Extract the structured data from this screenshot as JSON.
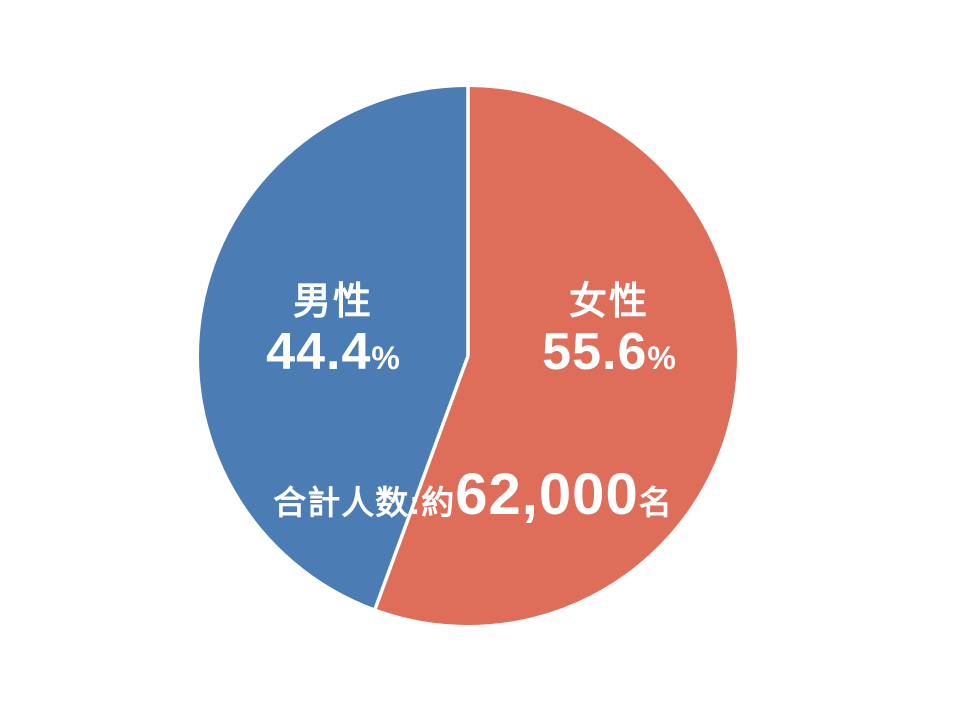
{
  "chart_data": {
    "type": "pie",
    "title": "",
    "start_angle_deg": 0,
    "direction": "clockwise",
    "slices": [
      {
        "key": "female",
        "label": "女性",
        "value": 55.6,
        "display_value": "55.6",
        "unit": "%",
        "color": "#DE6E5A"
      },
      {
        "key": "male",
        "label": "男性",
        "value": 44.4,
        "display_value": "44.4",
        "unit": "%",
        "color": "#4B7DB4"
      }
    ],
    "annotation": {
      "prefix": "合計人数:約",
      "number": "62,000",
      "suffix": "名"
    },
    "divider_color": "#FFFFFF",
    "label_color": "#FFFFFF",
    "background": "#FFFFFF",
    "legend": "none"
  }
}
